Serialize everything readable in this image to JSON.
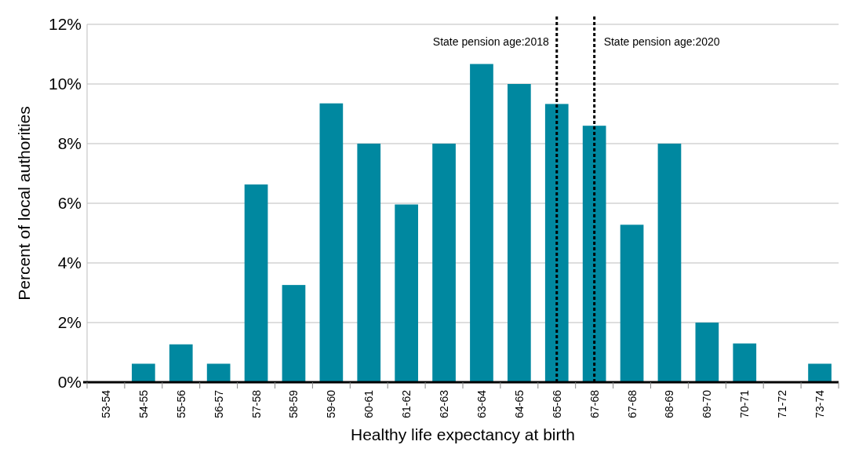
{
  "chart_data": {
    "type": "bar",
    "xlabel": "Healthy life expectancy at birth",
    "ylabel": "Percent of local authorities",
    "categories": [
      "53-54",
      "54-55",
      "55-56",
      "56-57",
      "57-58",
      "58-59",
      "59-60",
      "60-61",
      "61-62",
      "62-63",
      "63-64",
      "64-65",
      "65-66",
      "67-68",
      "67-68",
      "68-69",
      "69-70",
      "70-71",
      "71-72",
      "73-74"
    ],
    "values": [
      0,
      0.62,
      1.27,
      0.62,
      6.63,
      3.26,
      9.35,
      8.0,
      5.96,
      8.0,
      10.67,
      10.0,
      9.33,
      8.6,
      5.28,
      8.0,
      2.0,
      1.3,
      0,
      0.62
    ],
    "color": "#0088a0",
    "ylim": [
      0,
      12
    ],
    "yticks": [
      {
        "value": 0,
        "label": "0%"
      },
      {
        "value": 2,
        "label": "2%"
      },
      {
        "value": 4,
        "label": "4%"
      },
      {
        "value": 6,
        "label": "6%"
      },
      {
        "value": 8,
        "label": "8%"
      },
      {
        "value": 10,
        "label": "10%"
      },
      {
        "value": 12,
        "label": "12%"
      }
    ],
    "grid": "y",
    "ref_lines": [
      {
        "axis": "x",
        "value": "65-66",
        "label": "State pension age:2018",
        "line_style": "dashed"
      },
      {
        "axis": "x",
        "value": "67-68",
        "label": "State pension age:2020",
        "line_style": "dashed"
      }
    ]
  }
}
